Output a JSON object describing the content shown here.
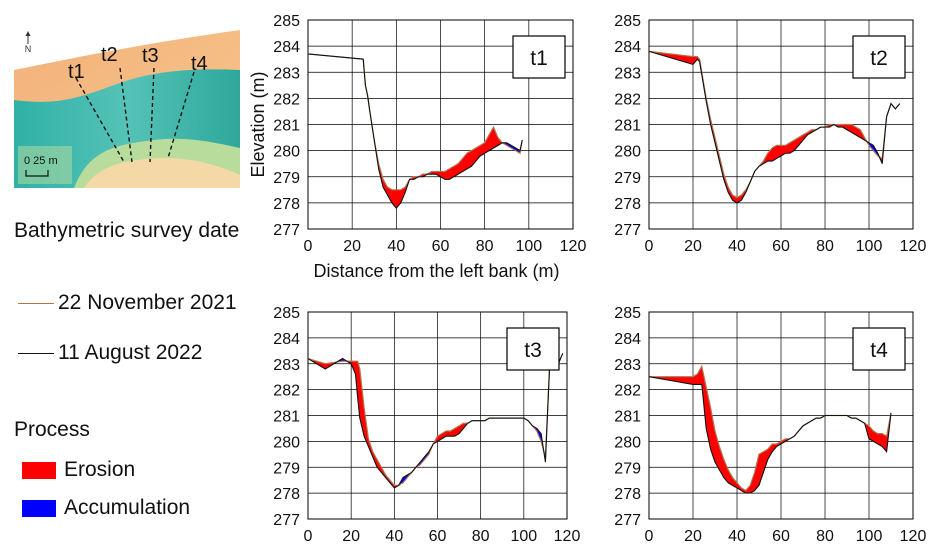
{
  "map_panel": {
    "north_label": "N",
    "transect_labels": [
      "t1",
      "t2",
      "t3",
      "t4"
    ],
    "scale_label": "0 25 m"
  },
  "legend": {
    "title": "Bathymetric survey date",
    "survey_dates": [
      {
        "label": "22 November 2021",
        "color": "#b07650"
      },
      {
        "label": "11 August 2022",
        "color": "#111111"
      }
    ],
    "process_title": "Process",
    "processes": [
      {
        "label": "Erosion",
        "color": "#ff0000"
      },
      {
        "label": "Accumulation",
        "color": "#0000ff"
      }
    ]
  },
  "colors": {
    "erosion": "#ff0000",
    "accumulation": "#0000ff",
    "nov2021_line": "#b07650",
    "aug2022_line": "#111111"
  },
  "chart_data": [
    {
      "type": "area",
      "panel_label": "t1",
      "xlabel": "Distance from the left bank (m)",
      "ylabel": "Elevation (m)",
      "xlim": [
        0,
        120
      ],
      "ylim": [
        277,
        285
      ],
      "xticks": [
        0,
        20,
        40,
        60,
        80,
        100,
        120
      ],
      "yticks": [
        277,
        278,
        279,
        280,
        281,
        282,
        283,
        284,
        285
      ],
      "grid": true,
      "series": [
        {
          "name": "22 November 2021",
          "x": [
            0,
            25,
            26,
            27,
            28,
            30,
            32,
            34,
            36,
            38,
            40,
            42,
            44,
            46,
            48,
            50,
            52,
            54,
            56,
            58,
            60,
            62,
            64,
            66,
            68,
            70,
            72,
            74,
            76,
            78,
            80,
            82,
            84,
            86,
            88,
            90,
            92,
            94,
            96,
            97
          ],
          "y": [
            283.7,
            283.5,
            282.5,
            282.1,
            281.5,
            280.4,
            279.5,
            278.9,
            278.6,
            278.5,
            278.5,
            278.5,
            278.6,
            278.9,
            279.0,
            279.0,
            279.1,
            279.1,
            279.2,
            279.2,
            279.2,
            279.2,
            279.3,
            279.4,
            279.5,
            279.7,
            279.9,
            280.0,
            280.1,
            280.2,
            280.3,
            280.6,
            280.9,
            280.5,
            280.3,
            280.2,
            280.1,
            280.0,
            279.9,
            280.4
          ]
        },
        {
          "name": "11 August 2022",
          "x": [
            0,
            25,
            26,
            27,
            28,
            30,
            32,
            34,
            36,
            38,
            40,
            42,
            44,
            46,
            48,
            50,
            52,
            54,
            56,
            58,
            60,
            62,
            64,
            66,
            68,
            70,
            72,
            74,
            76,
            78,
            80,
            82,
            84,
            86,
            88,
            90,
            92,
            94,
            96,
            97
          ],
          "y": [
            283.7,
            283.5,
            282.5,
            282.1,
            281.5,
            280.4,
            279.3,
            278.6,
            278.3,
            278.0,
            277.8,
            278.0,
            278.4,
            278.9,
            278.9,
            279.0,
            279.0,
            279.1,
            279.1,
            279.1,
            279.0,
            278.9,
            278.9,
            279.0,
            279.1,
            279.2,
            279.3,
            279.4,
            279.6,
            279.8,
            279.9,
            280.0,
            280.1,
            280.2,
            280.3,
            280.3,
            280.2,
            280.1,
            280.0,
            280.4
          ]
        }
      ]
    },
    {
      "type": "area",
      "panel_label": "t2",
      "xlabel": "",
      "ylabel": "",
      "xlim": [
        0,
        120
      ],
      "ylim": [
        277,
        285
      ],
      "xticks": [
        0,
        20,
        40,
        60,
        80,
        100,
        120
      ],
      "yticks": [
        277,
        278,
        279,
        280,
        281,
        282,
        283,
        284,
        285
      ],
      "grid": true,
      "series": [
        {
          "name": "22 November 2021",
          "x": [
            0,
            20,
            22,
            23,
            24,
            26,
            28,
            30,
            32,
            34,
            36,
            38,
            40,
            42,
            44,
            46,
            48,
            50,
            52,
            54,
            56,
            58,
            60,
            62,
            64,
            66,
            68,
            70,
            72,
            74,
            76,
            78,
            80,
            82,
            84,
            86,
            88,
            90,
            92,
            94,
            96,
            98,
            100,
            102,
            104,
            106,
            108,
            110,
            112,
            114
          ],
          "y": [
            283.8,
            283.6,
            283.6,
            283.5,
            283.0,
            282.0,
            281.2,
            280.5,
            279.8,
            279.1,
            278.6,
            278.3,
            278.2,
            278.3,
            278.5,
            278.8,
            279.2,
            279.4,
            279.6,
            279.9,
            280.1,
            280.2,
            280.2,
            280.2,
            280.3,
            280.4,
            280.5,
            280.6,
            280.7,
            280.8,
            280.8,
            280.9,
            280.9,
            281.0,
            281.0,
            281.0,
            281.0,
            281.0,
            281.0,
            280.9,
            280.8,
            280.5,
            280.2,
            280.0,
            279.8,
            279.7,
            281.3,
            281.8,
            281.6,
            281.8
          ]
        },
        {
          "name": "11 August 2022",
          "x": [
            0,
            20,
            22,
            23,
            24,
            26,
            28,
            30,
            32,
            34,
            36,
            38,
            40,
            42,
            44,
            46,
            48,
            50,
            52,
            54,
            56,
            58,
            60,
            62,
            64,
            66,
            68,
            70,
            72,
            74,
            76,
            78,
            80,
            82,
            84,
            86,
            88,
            90,
            92,
            94,
            96,
            98,
            100,
            102,
            104,
            106,
            108,
            110,
            112,
            114
          ],
          "y": [
            283.8,
            283.3,
            283.5,
            283.4,
            282.9,
            281.9,
            281.0,
            280.3,
            279.6,
            278.9,
            278.4,
            278.1,
            278.0,
            278.1,
            278.4,
            278.8,
            279.2,
            279.4,
            279.5,
            279.6,
            279.6,
            279.7,
            279.8,
            279.9,
            279.9,
            280.0,
            280.2,
            280.4,
            280.6,
            280.7,
            280.8,
            280.9,
            280.9,
            280.9,
            281.0,
            280.9,
            280.9,
            280.8,
            280.7,
            280.6,
            280.5,
            280.4,
            280.3,
            280.2,
            279.9,
            279.5,
            281.3,
            281.8,
            281.6,
            281.8
          ]
        }
      ]
    },
    {
      "type": "area",
      "panel_label": "t3",
      "xlabel": "",
      "ylabel": "",
      "xlim": [
        0,
        120
      ],
      "ylim": [
        277,
        285
      ],
      "xticks": [
        0,
        20,
        40,
        60,
        80,
        100,
        120
      ],
      "yticks": [
        277,
        278,
        279,
        280,
        281,
        282,
        283,
        284,
        285
      ],
      "grid": true,
      "series": [
        {
          "name": "22 November 2021",
          "x": [
            0,
            8,
            16,
            20,
            22,
            23,
            24,
            26,
            28,
            30,
            32,
            34,
            36,
            38,
            40,
            42,
            44,
            46,
            48,
            50,
            52,
            54,
            56,
            58,
            60,
            62,
            64,
            66,
            68,
            70,
            72,
            74,
            76,
            78,
            80,
            82,
            84,
            86,
            88,
            90,
            92,
            94,
            96,
            98,
            100,
            102,
            104,
            106,
            108,
            110,
            112,
            116,
            118
          ],
          "y": [
            283.2,
            283.0,
            283.1,
            283.1,
            283.1,
            283.1,
            282.8,
            281.3,
            280.1,
            279.6,
            279.3,
            279.0,
            278.7,
            278.5,
            278.3,
            278.3,
            278.4,
            278.6,
            278.8,
            279.0,
            279.1,
            279.3,
            279.5,
            279.9,
            280.2,
            280.3,
            280.4,
            280.4,
            280.5,
            280.6,
            280.7,
            280.7,
            280.8,
            280.8,
            280.8,
            280.8,
            280.9,
            280.9,
            280.9,
            280.9,
            280.9,
            280.9,
            280.9,
            280.9,
            280.9,
            280.8,
            280.6,
            280.4,
            280.0,
            279.4,
            283.0,
            283.0,
            283.4
          ]
        },
        {
          "name": "11 August 2022",
          "x": [
            0,
            8,
            16,
            20,
            22,
            23,
            24,
            26,
            28,
            30,
            32,
            34,
            36,
            38,
            40,
            42,
            44,
            46,
            48,
            50,
            52,
            54,
            56,
            58,
            60,
            62,
            64,
            66,
            68,
            70,
            72,
            74,
            76,
            78,
            80,
            82,
            84,
            86,
            88,
            90,
            92,
            94,
            96,
            98,
            100,
            102,
            104,
            106,
            108,
            110,
            112,
            116,
            118
          ],
          "y": [
            283.2,
            282.8,
            283.2,
            283.0,
            282.6,
            281.7,
            280.9,
            280.2,
            279.8,
            279.4,
            279.0,
            278.8,
            278.6,
            278.4,
            278.2,
            278.3,
            278.6,
            278.7,
            278.8,
            279.0,
            279.2,
            279.4,
            279.6,
            279.9,
            280.0,
            280.1,
            280.2,
            280.2,
            280.2,
            280.3,
            280.5,
            280.7,
            280.8,
            280.8,
            280.8,
            280.8,
            280.9,
            280.9,
            280.9,
            280.9,
            280.9,
            280.9,
            280.9,
            280.9,
            280.9,
            280.8,
            280.6,
            280.5,
            280.3,
            279.2,
            283.0,
            283.0,
            283.4
          ]
        }
      ]
    },
    {
      "type": "area",
      "panel_label": "t4",
      "xlabel": "",
      "ylabel": "",
      "xlim": [
        0,
        120
      ],
      "ylim": [
        277,
        285
      ],
      "xticks": [
        0,
        20,
        40,
        60,
        80,
        100,
        120
      ],
      "yticks": [
        277,
        278,
        279,
        280,
        281,
        282,
        283,
        284,
        285
      ],
      "grid": true,
      "series": [
        {
          "name": "22 November 2021",
          "x": [
            0,
            20,
            22,
            24,
            26,
            28,
            30,
            32,
            34,
            36,
            38,
            40,
            42,
            44,
            46,
            48,
            50,
            52,
            54,
            56,
            58,
            60,
            62,
            64,
            66,
            68,
            70,
            72,
            74,
            76,
            78,
            80,
            82,
            84,
            86,
            88,
            90,
            92,
            94,
            96,
            98,
            100,
            102,
            104,
            106,
            108,
            110
          ],
          "y": [
            282.5,
            282.5,
            282.6,
            282.9,
            282.1,
            281.3,
            280.4,
            279.8,
            279.3,
            278.9,
            278.6,
            278.4,
            278.2,
            278.1,
            278.3,
            278.8,
            279.5,
            279.6,
            279.7,
            279.9,
            279.9,
            280.0,
            280.1,
            280.1,
            280.2,
            280.4,
            280.6,
            280.7,
            280.8,
            280.9,
            280.9,
            281.0,
            281.0,
            281.0,
            281.0,
            281.0,
            281.0,
            280.9,
            280.9,
            280.8,
            280.7,
            280.6,
            280.4,
            280.3,
            280.3,
            280.2,
            281.1
          ]
        },
        {
          "name": "11 August 2022",
          "x": [
            0,
            20,
            22,
            24,
            26,
            28,
            30,
            32,
            34,
            36,
            38,
            40,
            42,
            44,
            46,
            48,
            50,
            52,
            54,
            56,
            58,
            60,
            62,
            64,
            66,
            68,
            70,
            72,
            74,
            76,
            78,
            80,
            82,
            84,
            86,
            88,
            90,
            92,
            94,
            96,
            98,
            100,
            102,
            104,
            106,
            108,
            110
          ],
          "y": [
            282.5,
            282.2,
            282.2,
            282.2,
            280.5,
            279.7,
            279.2,
            278.9,
            278.6,
            278.4,
            278.3,
            278.2,
            278.1,
            278.0,
            278.0,
            278.1,
            278.3,
            278.8,
            279.3,
            279.6,
            279.8,
            279.9,
            280.0,
            280.1,
            280.2,
            280.4,
            280.6,
            280.7,
            280.8,
            280.9,
            280.9,
            281.0,
            281.0,
            281.0,
            281.0,
            281.0,
            281.0,
            280.9,
            280.9,
            280.8,
            280.7,
            280.1,
            280.0,
            279.9,
            279.8,
            279.6,
            281.1
          ]
        }
      ]
    }
  ]
}
